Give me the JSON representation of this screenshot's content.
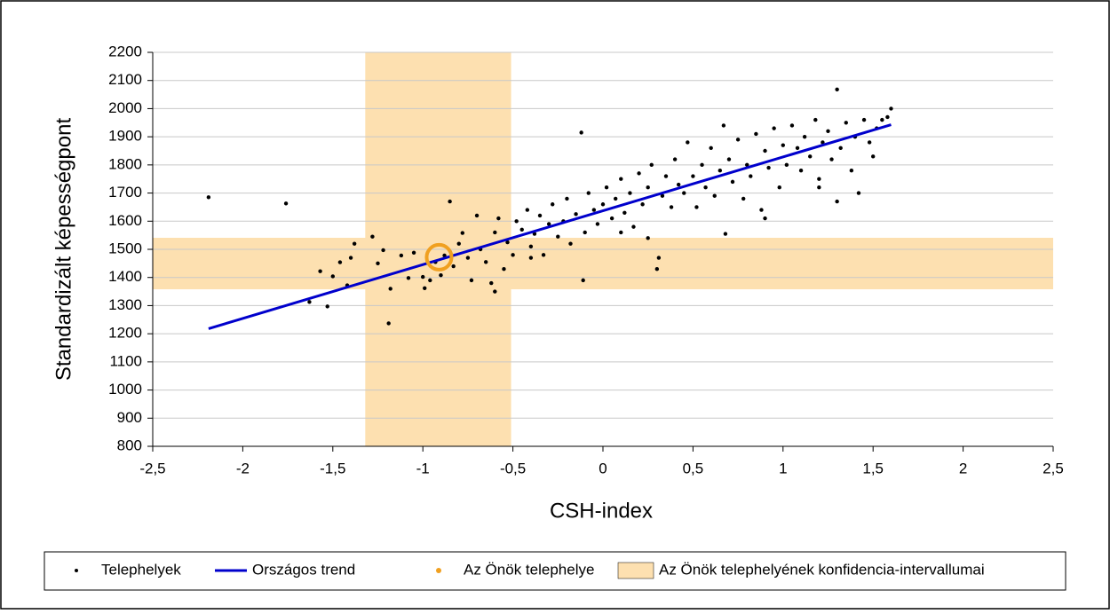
{
  "chart_data": {
    "type": "scatter",
    "x_label": "CSH-index",
    "y_label": "Standardizált képességpont",
    "xlim": [
      -2.5,
      2.5
    ],
    "ylim": [
      800,
      2200
    ],
    "xticks": [
      {
        "value": -2.5,
        "label": "-2,5"
      },
      -2,
      {
        "value": -1.5,
        "label": "-1,5"
      },
      -1,
      {
        "value": -0.5,
        "label": "-0,5"
      },
      0,
      {
        "value": 0.5,
        "label": "0,5"
      },
      1,
      {
        "value": 1.5,
        "label": "1,5"
      },
      2,
      {
        "value": 2.5,
        "label": "2,5"
      }
    ],
    "yticks": [
      800,
      900,
      1000,
      1100,
      1200,
      1300,
      1400,
      1500,
      1600,
      1700,
      1800,
      1900,
      2000,
      2100,
      2200
    ],
    "grid": true,
    "series": [
      {
        "name": "Telephelyek",
        "type": "scatter",
        "color": "#000000",
        "x": [
          -2.19,
          -1.76,
          -1.63,
          -1.57,
          -1.53,
          -1.5,
          -1.46,
          -1.42,
          -1.4,
          -1.38,
          -1.28,
          -1.25,
          -1.22,
          -1.19,
          -1.18,
          -1.12,
          -1.08,
          -1.05,
          -1,
          -0.99,
          -0.96,
          -0.93,
          -0.9,
          -0.88,
          -0.85,
          -0.83,
          -0.8,
          -0.78,
          -0.75,
          -0.73,
          -0.7,
          -0.68,
          -0.65,
          -0.62,
          -0.6,
          -0.58,
          -0.55,
          -0.53,
          -0.5,
          -0.48,
          -0.45,
          -0.42,
          -0.4,
          -0.38,
          -0.35,
          -0.33,
          -0.3,
          -0.28,
          -0.25,
          -0.22,
          -0.2,
          -0.18,
          -0.15,
          -0.12,
          -0.11,
          -0.1,
          -0.08,
          -0.05,
          -0.03,
          0,
          0.02,
          0.05,
          0.07,
          0.1,
          0.12,
          0.15,
          0.17,
          0.2,
          0.22,
          0.25,
          0.27,
          0.3,
          0.31,
          0.33,
          0.35,
          0.38,
          0.4,
          0.42,
          0.45,
          0.47,
          0.5,
          0.52,
          0.55,
          0.57,
          0.6,
          0.62,
          0.65,
          0.67,
          0.68,
          0.7,
          0.72,
          0.75,
          0.78,
          0.8,
          0.82,
          0.85,
          0.88,
          0.9,
          0.92,
          0.95,
          0.98,
          1,
          1.02,
          1.05,
          1.08,
          1.1,
          1.12,
          1.15,
          1.18,
          1.2,
          1.22,
          1.25,
          1.27,
          1.3,
          1.32,
          1.35,
          1.38,
          1.4,
          1.42,
          1.45,
          1.48,
          1.5,
          1.52,
          1.55,
          1.58,
          1.6,
          1.3,
          0.9,
          1.2,
          -0.6,
          -0.4,
          0.1,
          0.25
        ],
        "y": [
          1685,
          1663,
          1313,
          1422,
          1297,
          1404,
          1454,
          1372,
          1470,
          1520,
          1545,
          1450,
          1497,
          1237,
          1360,
          1478,
          1398,
          1488,
          1402,
          1362,
          1390,
          1455,
          1408,
          1478,
          1670,
          1440,
          1520,
          1558,
          1470,
          1390,
          1620,
          1500,
          1455,
          1380,
          1560,
          1610,
          1430,
          1525,
          1480,
          1600,
          1570,
          1640,
          1510,
          1555,
          1620,
          1480,
          1590,
          1660,
          1545,
          1600,
          1680,
          1520,
          1625,
          1915,
          1390,
          1560,
          1700,
          1640,
          1590,
          1660,
          1720,
          1610,
          1680,
          1750,
          1630,
          1700,
          1580,
          1770,
          1660,
          1720,
          1800,
          1430,
          1470,
          1690,
          1760,
          1650,
          1820,
          1730,
          1700,
          1880,
          1760,
          1650,
          1800,
          1720,
          1860,
          1690,
          1780,
          1940,
          1555,
          1820,
          1740,
          1890,
          1680,
          1800,
          1760,
          1910,
          1640,
          1850,
          1790,
          1930,
          1720,
          1870,
          1800,
          1940,
          1860,
          1780,
          1900,
          1830,
          1960,
          1750,
          1880,
          1920,
          1820,
          2068,
          1860,
          1950,
          1780,
          1900,
          1700,
          1960,
          1880,
          1830,
          1930,
          1960,
          1970,
          2000,
          1670,
          1610,
          1720,
          1350,
          1470,
          1560,
          1540
        ]
      },
      {
        "name": "Országos trend",
        "type": "line",
        "color": "#0000cc",
        "x": [
          -2.19,
          1.6
        ],
        "y": [
          1218,
          1943
        ]
      },
      {
        "name": "Az Önök telephelye",
        "type": "point",
        "color": "#f0a020",
        "x": [
          -0.91
        ],
        "y": [
          1472
        ]
      },
      {
        "name": "Az Önök telephelyének konfidencia-intervallumai",
        "type": "band",
        "color": "#fde0b0",
        "x": [
          -1.32,
          -0.51
        ],
        "y": [
          1358,
          1541
        ]
      }
    ]
  }
}
